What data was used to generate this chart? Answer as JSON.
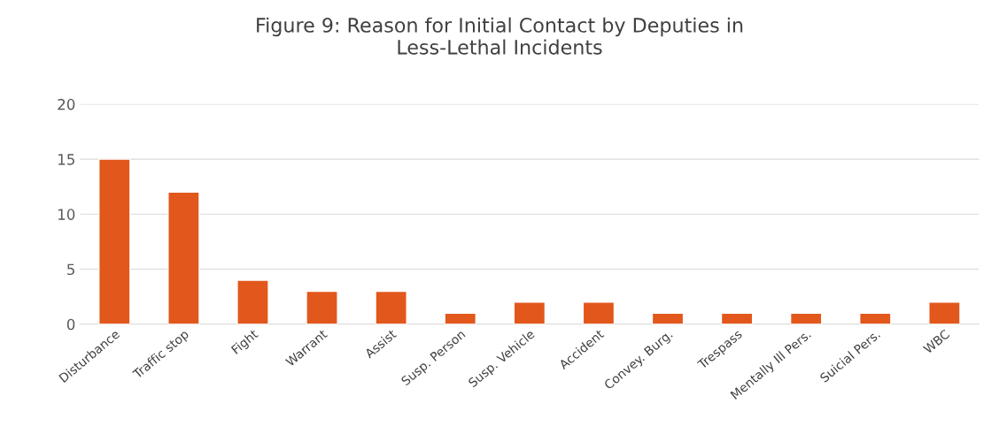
{
  "chart_data": {
    "type": "bar",
    "title": "Figure 9: Reason for Initial Contact by Deputies in\nLess-Lethal Incidents",
    "categories": [
      "Disturbance",
      "Traffic stop",
      "Fight",
      "Warrant",
      "Assist",
      "Susp. Person",
      "Susp. Vehicle",
      "Accident",
      "Convey. Burg.",
      "Trespass",
      "Mentally Ill Pers.",
      "Suicial Pers.",
      "WBC"
    ],
    "values": [
      15,
      12,
      4,
      3,
      3,
      1,
      2,
      2,
      1,
      1,
      1,
      1,
      2
    ],
    "color": "#e2571c",
    "ylim": [
      0,
      20
    ],
    "yticks": [
      0,
      5,
      10,
      15,
      20
    ],
    "grid": "y"
  }
}
